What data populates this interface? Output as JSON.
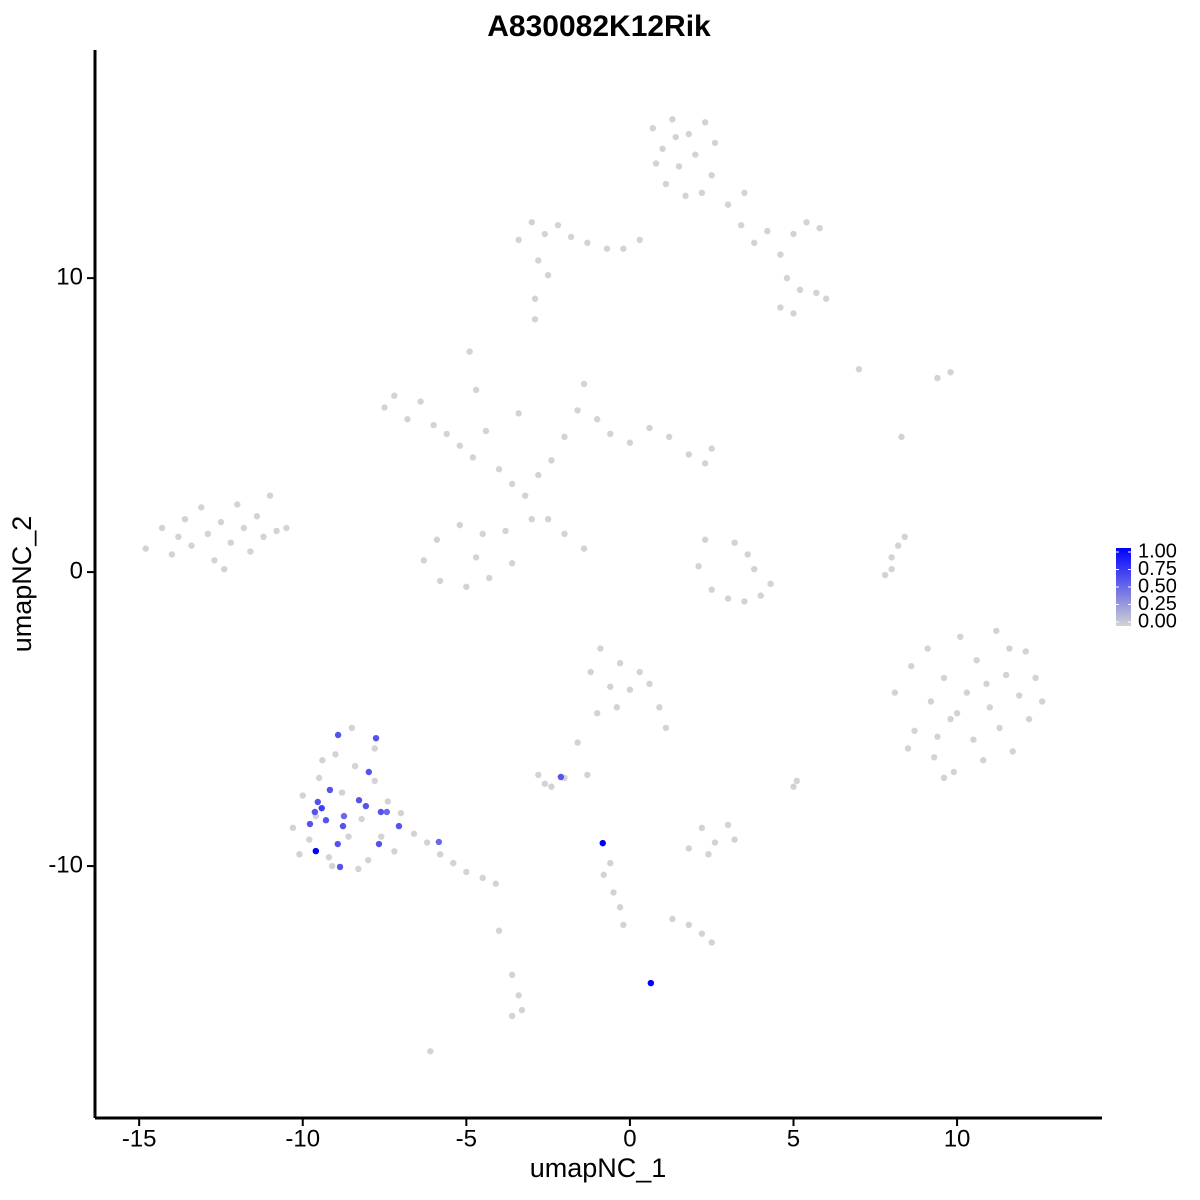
{
  "chart_data": {
    "type": "scatter",
    "title": "A830082K12Rik",
    "x_label": "umapNC_1",
    "y_label": "umapNC_2",
    "xlim": [
      -16.35,
      14.43
    ],
    "ylim": [
      -18.57,
      17.76
    ],
    "xticks": [
      -15,
      -10,
      -5,
      0,
      5,
      10
    ],
    "yticks": [
      -10,
      0,
      10
    ],
    "colorscale": {
      "colors": [
        "#d3d3d3",
        "#0000ff"
      ],
      "lim": [
        0,
        1
      ],
      "ticks": [
        {
          "value": 0,
          "label": "0.00"
        },
        0.25,
        {
          "value": 0.5,
          "label": "0.50"
        },
        0.75,
        {
          "value": 1,
          "label": "1.00"
        }
      ]
    },
    "x": [
      -14.8,
      -14.3,
      -14,
      -13.6,
      -13.4,
      -13.1,
      -12.9,
      -12.7,
      -12.5,
      -12.2,
      -12,
      -11.8,
      -11.6,
      -11.4,
      -11.2,
      -11,
      -10.8,
      -10.5,
      -13.8,
      -12.4,
      0.7,
      1.0,
      1.3,
      1.5,
      1.8,
      2.0,
      2.3,
      2.5,
      1.1,
      1.7,
      2.2,
      0.8,
      2.6,
      1.4,
      -3.4,
      -3.0,
      -2.6,
      -2.2,
      -1.8,
      -1.3,
      -0.7,
      -0.2,
      0.3,
      -2.8,
      -2.5,
      3.0,
      3.4,
      3.8,
      4.2,
      4.6,
      5.0,
      5.4,
      5.8,
      4.8,
      5.2,
      5.7,
      6.0,
      5.0,
      4.6,
      3.5,
      -7.5,
      -7.2,
      -6.8,
      -6.4,
      -6.0,
      -5.6,
      -5.2,
      -4.8,
      -4.9,
      -4.7,
      -4.4,
      -4.0,
      -3.6,
      -3.2,
      -2.8,
      -2.4,
      -2.0,
      -1.6,
      -1.4,
      -1.0,
      -0.6,
      0,
      0.6,
      1.2,
      1.8,
      2.3,
      2.5,
      -3.4,
      -3.0,
      -3.8,
      -4.5,
      -5.2,
      -5.9,
      -6.3,
      -5.8,
      -5.0,
      -4.3,
      -3.6,
      -4.7,
      -2.5,
      -2.0,
      -1.4,
      2.3,
      3.2,
      3.6,
      2.1,
      2.5,
      3.0,
      3.5,
      4.0,
      4.3,
      3.8,
      7.8,
      8.0,
      8.2,
      8.4,
      8.0,
      8.1,
      8.6,
      8.7,
      9.1,
      9.2,
      9.3,
      9.6,
      9.8,
      9.9,
      10.1,
      10.3,
      10.5,
      10.6,
      10.8,
      11.0,
      11.2,
      11.3,
      11.5,
      11.7,
      11.9,
      12.1,
      12.2,
      12.4,
      12.6,
      10.0,
      10.9,
      9.4,
      11.6,
      8.5,
      9.6,
      -1.2,
      -0.9,
      -0.6,
      -0.3,
      0,
      0.3,
      0.6,
      0.9,
      1.1,
      -1.0,
      -1.6,
      -0.4,
      -10.3,
      -10.0,
      -9.8,
      -9.5,
      -9.2,
      -9.0,
      -8.8,
      -8.6,
      -8.4,
      -8.2,
      -8.0,
      -7.8,
      -7.6,
      -7.4,
      -7.2,
      -7.0,
      -6.6,
      -6.2,
      -5.8,
      -5.4,
      -5.0,
      -4.5,
      -4.1,
      -9.6,
      -8.5,
      -7.8,
      -9.1,
      -8.3,
      -10.1,
      -9.4,
      -2.8,
      -2.4,
      -2.0,
      -2.6,
      1.8,
      2.2,
      2.6,
      3.0,
      2.4,
      3.2,
      -0.8,
      -0.5,
      -0.3,
      -0.2,
      -0.6,
      -3.6,
      -3.4,
      -3.3,
      -3.6,
      1.3,
      1.8,
      2.2,
      2.5,
      -2.9,
      -2.9,
      -6.1,
      7.0,
      9.8,
      9.4,
      8.3,
      5.0,
      5.1,
      -4.0,
      -1.3,
      -8.92,
      -7.76,
      -7.98,
      -8.28,
      -9.54,
      -9.17,
      -9.42,
      -9.63,
      -9.29,
      -9.78,
      -8.74,
      -8.77,
      -8.07,
      -7.61,
      -7.43,
      -7.06,
      -7.67,
      -8.93,
      -9.6,
      -8.86,
      -5.84,
      -2.11,
      -0.83,
      0.64
    ],
    "y": [
      0.8,
      1.5,
      0.6,
      1.8,
      0.9,
      2.2,
      1.3,
      0.4,
      1.7,
      1.0,
      2.3,
      1.5,
      0.7,
      1.9,
      1.2,
      2.6,
      1.4,
      1.5,
      1.2,
      0.1,
      15.1,
      14.4,
      15.4,
      13.8,
      14.9,
      14.2,
      15.3,
      13.5,
      13.2,
      12.8,
      12.9,
      13.9,
      14.6,
      14.8,
      11.3,
      11.9,
      11.5,
      11.8,
      11.4,
      11.2,
      11.0,
      11.0,
      11.3,
      10.6,
      10.1,
      12.5,
      11.8,
      11.2,
      11.6,
      10.8,
      11.5,
      11.9,
      11.7,
      10.0,
      9.6,
      9.5,
      9.3,
      8.8,
      9.0,
      12.9,
      5.6,
      6.0,
      5.2,
      5.8,
      5.0,
      4.7,
      4.3,
      3.9,
      7.5,
      6.2,
      4.8,
      3.5,
      3.0,
      2.6,
      3.3,
      3.8,
      4.6,
      5.5,
      6.4,
      5.2,
      4.7,
      4.4,
      4.9,
      4.6,
      4.0,
      3.7,
      4.2,
      5.4,
      1.8,
      1.4,
      1.3,
      1.6,
      1.1,
      0.4,
      -0.3,
      -0.5,
      -0.2,
      0.3,
      0.5,
      1.8,
      1.3,
      0.8,
      1.1,
      1.0,
      0.6,
      0.2,
      -0.6,
      -0.9,
      -1.0,
      -0.8,
      -0.4,
      0.1,
      -0.1,
      0.5,
      0.9,
      1.2,
      0.1,
      -4.1,
      -3.2,
      -5.4,
      -2.6,
      -4.4,
      -6.3,
      -3.6,
      -5.0,
      -6.8,
      -2.2,
      -4.1,
      -5.7,
      -3.0,
      -6.4,
      -4.6,
      -2.0,
      -5.3,
      -3.5,
      -6.1,
      -4.2,
      -2.7,
      -5.0,
      -3.6,
      -4.4,
      -4.8,
      -3.8,
      -5.6,
      -2.6,
      -6.0,
      -7.0,
      -3.4,
      -2.6,
      -3.9,
      -3.1,
      -4.0,
      -3.4,
      -3.8,
      -4.6,
      -5.3,
      -4.8,
      -5.8,
      -4.6,
      -8.7,
      -7.6,
      -9.1,
      -7.0,
      -9.7,
      -6.2,
      -7.5,
      -9.0,
      -6.6,
      -8.4,
      -9.8,
      -7.1,
      -9.0,
      -7.8,
      -9.5,
      -8.2,
      -8.9,
      -9.2,
      -9.6,
      -9.9,
      -10.2,
      -10.4,
      -10.6,
      -8.3,
      -5.3,
      -6.0,
      -10.0,
      -10.1,
      -9.6,
      -6.4,
      -6.9,
      -7.3,
      -7.0,
      -7.2,
      -9.4,
      -8.7,
      -9.2,
      -8.6,
      -9.6,
      -9.1,
      -10.3,
      -10.9,
      -11.4,
      -12.0,
      -9.9,
      -13.7,
      -14.4,
      -14.9,
      -15.1,
      -11.8,
      -12.0,
      -12.3,
      -12.6,
      9.3,
      8.6,
      -16.3,
      6.9,
      6.8,
      6.6,
      4.6,
      -7.3,
      -7.1,
      -12.2,
      -6.9,
      -5.54,
      -5.65,
      -6.8,
      -7.76,
      -7.82,
      -7.41,
      -8.03,
      -8.16,
      -8.44,
      -8.57,
      -8.3,
      -8.64,
      -7.96,
      -8.16,
      -8.16,
      -8.64,
      -9.25,
      -9.25,
      -9.49,
      -10.03,
      -9.18,
      -6.97,
      -9.22,
      -13.98
    ],
    "values": [
      0,
      0,
      0,
      0,
      0,
      0,
      0,
      0,
      0,
      0,
      0,
      0,
      0,
      0,
      0,
      0,
      0,
      0,
      0,
      0,
      0,
      0,
      0,
      0,
      0,
      0,
      0,
      0,
      0,
      0,
      0,
      0,
      0,
      0,
      0,
      0,
      0,
      0,
      0,
      0,
      0,
      0,
      0,
      0,
      0,
      0,
      0,
      0,
      0,
      0,
      0,
      0,
      0,
      0,
      0,
      0,
      0,
      0,
      0,
      0,
      0,
      0,
      0,
      0,
      0,
      0,
      0,
      0,
      0,
      0,
      0,
      0,
      0,
      0,
      0,
      0,
      0,
      0,
      0,
      0,
      0,
      0,
      0,
      0,
      0,
      0,
      0,
      0,
      0,
      0,
      0,
      0,
      0,
      0,
      0,
      0,
      0,
      0,
      0,
      0,
      0,
      0,
      0,
      0,
      0,
      0,
      0,
      0,
      0,
      0,
      0,
      0,
      0,
      0,
      0,
      0,
      0,
      0,
      0,
      0,
      0,
      0,
      0,
      0,
      0,
      0,
      0,
      0,
      0,
      0,
      0,
      0,
      0,
      0,
      0,
      0,
      0,
      0,
      0,
      0,
      0,
      0,
      0,
      0,
      0,
      0,
      0,
      0,
      0,
      0,
      0,
      0,
      0,
      0,
      0,
      0,
      0,
      0,
      0,
      0,
      0,
      0,
      0,
      0,
      0,
      0,
      0,
      0,
      0,
      0,
      0,
      0,
      0,
      0,
      0,
      0,
      0,
      0,
      0,
      0,
      0,
      0,
      0,
      0,
      0,
      0,
      0,
      0,
      0,
      0,
      0,
      0,
      0,
      0,
      0,
      0,
      0,
      0,
      0,
      0,
      0,
      0,
      0,
      0,
      0,
      0,
      0,
      0,
      0,
      0,
      0,
      0,
      0,
      0,
      0,
      0,
      0,
      0,
      0,
      0,
      0,
      0,
      0,
      0.6,
      0.6,
      0.6,
      0.6,
      0.6,
      0.6,
      0.7,
      0.6,
      0.6,
      0.6,
      0.5,
      0.6,
      0.6,
      0.6,
      0.5,
      0.6,
      0.6,
      0.6,
      1,
      0.6,
      0.5,
      0.6,
      1,
      1
    ]
  }
}
